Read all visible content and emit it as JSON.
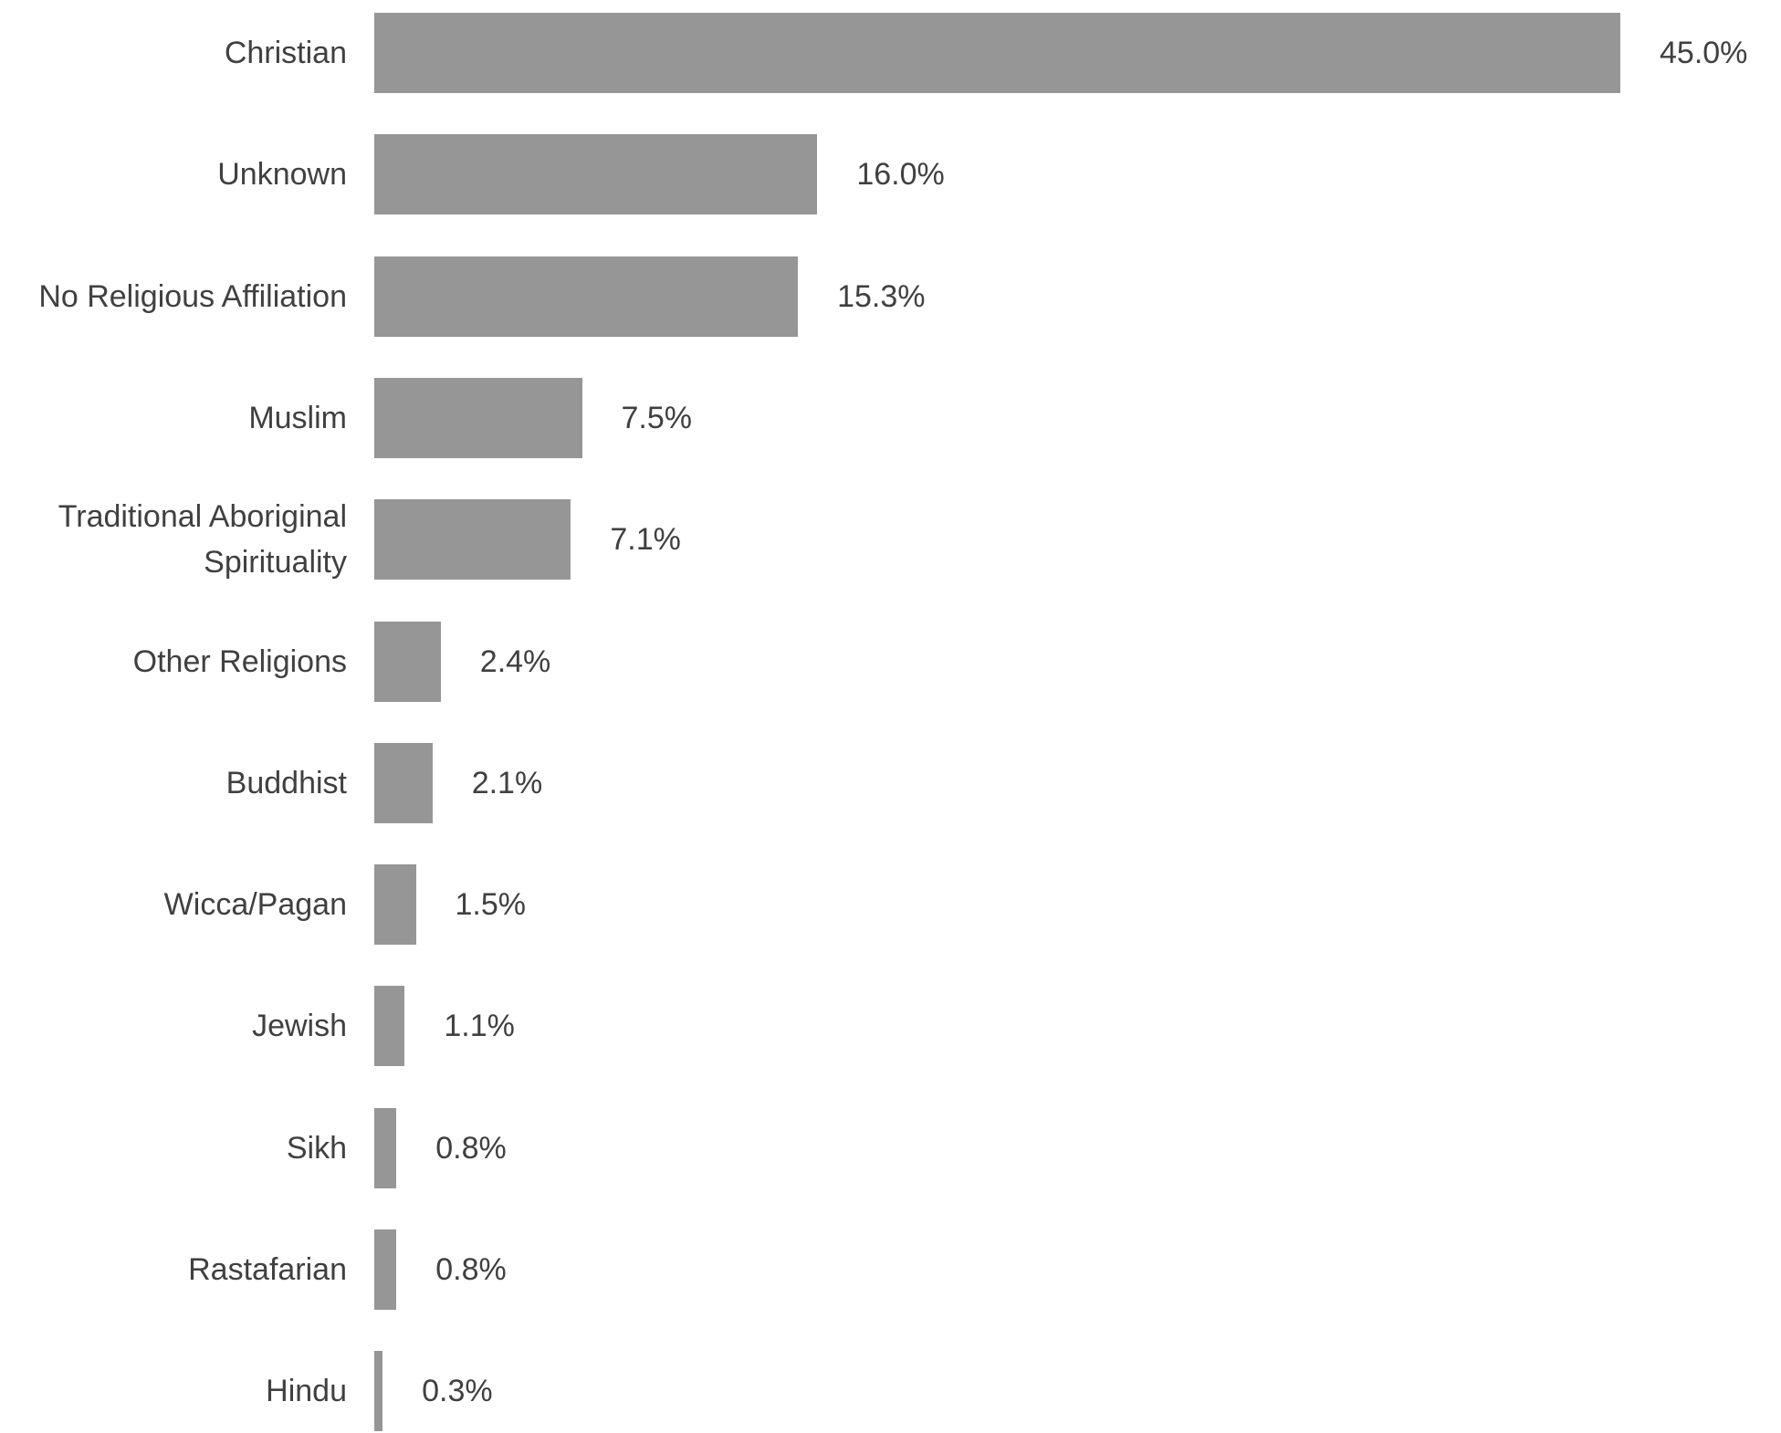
{
  "chart_data": {
    "type": "bar",
    "orientation": "horizontal",
    "color": "#969696",
    "categories": [
      "Christian",
      "Unknown",
      "No Religious Affiliation",
      "Muslim",
      "Traditional Aboriginal Spirituality",
      "Other Religions",
      "Buddhist",
      "Wicca/Pagan",
      "Jewish",
      "Sikh",
      "Rastafarian",
      "Hindu"
    ],
    "values": [
      45.0,
      16.0,
      15.3,
      7.5,
      7.1,
      2.4,
      2.1,
      1.5,
      1.1,
      0.8,
      0.8,
      0.3
    ],
    "value_labels": [
      "45.0%",
      "16.0%",
      "15.3%",
      "7.5%",
      "7.1%",
      "2.4%",
      "2.1%",
      "1.5%",
      "1.1%",
      "0.8%",
      "0.8%",
      "0.3%"
    ]
  }
}
